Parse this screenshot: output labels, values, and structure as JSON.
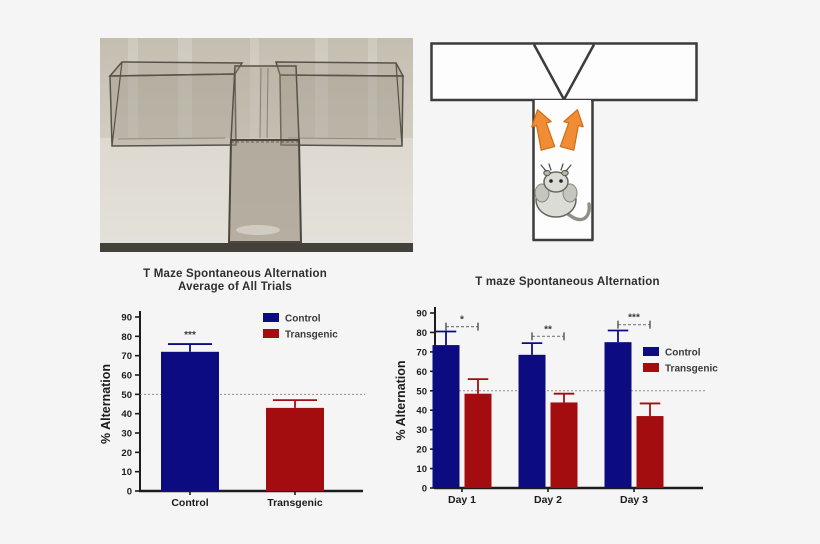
{
  "figure": {
    "background": "#f6f5f6"
  },
  "colors": {
    "control": "#0c0c80",
    "transgenic": "#a30d10",
    "axis": "#1c1c1c",
    "reference_line": "#8f8f8f",
    "bracket": "#7d7d7d",
    "arrow_orange": "#f08c33"
  },
  "chart_data": [
    {
      "type": "bar",
      "title": "T Maze Spontaneous Alternation",
      "subtitle": "Average of All Trials",
      "xlabel": "",
      "ylabel": "% Alternation",
      "ylim": [
        0,
        90
      ],
      "ytick_step": 10,
      "reference_line_y": 50,
      "grid": false,
      "categories": [
        "Control",
        "Transgenic"
      ],
      "values": [
        72,
        43
      ],
      "errors": [
        4,
        4
      ],
      "bar_colors": [
        "#0c0c80",
        "#a30d10"
      ],
      "significance": [
        {
          "category": "Control",
          "label": "***"
        }
      ],
      "legend": [
        {
          "label": "Control",
          "color": "#0c0c80"
        },
        {
          "label": "Transgenic",
          "color": "#a30d10"
        }
      ],
      "legend_position": "top-right"
    },
    {
      "type": "bar",
      "title": "T maze Spontaneous Alternation",
      "xlabel": "",
      "ylabel": "% Alternation",
      "ylim": [
        0,
        90
      ],
      "ytick_step": 10,
      "reference_line_y": 50,
      "grid": false,
      "categories": [
        "Day 1",
        "Day 2",
        "Day 3"
      ],
      "series": [
        {
          "name": "Control",
          "color": "#0c0c80",
          "values": [
            73.5,
            68.5,
            75
          ],
          "errors": [
            7,
            6,
            6
          ]
        },
        {
          "name": "Transgenic",
          "color": "#a30d10",
          "values": [
            48.5,
            44,
            37
          ],
          "errors": [
            7.5,
            4.5,
            6.5
          ]
        }
      ],
      "sig_brackets": [
        {
          "category": "Day 1",
          "label": "*",
          "y": 83
        },
        {
          "category": "Day 2",
          "label": "**",
          "y": 78
        },
        {
          "category": "Day 3",
          "label": "***",
          "y": 84
        }
      ],
      "legend": [
        {
          "label": "Control",
          "color": "#0c0c80"
        },
        {
          "label": "Transgenic",
          "color": "#a30d10"
        }
      ],
      "legend_position": "middle-right"
    }
  ]
}
